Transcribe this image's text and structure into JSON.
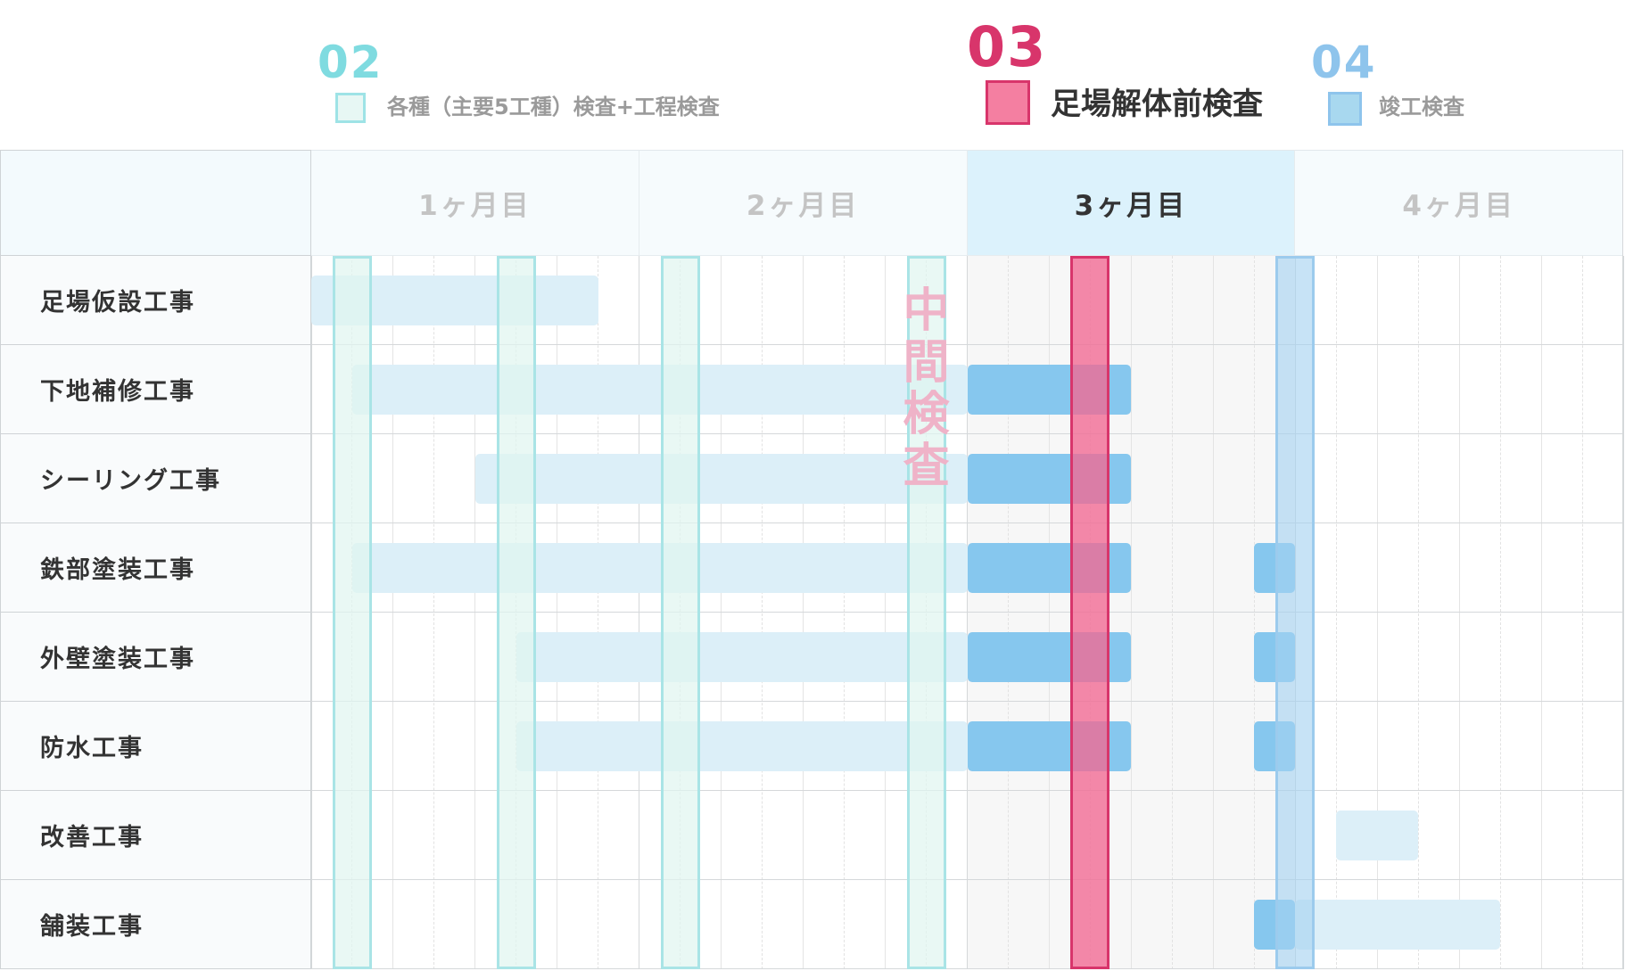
{
  "legend": [
    {
      "number": "02",
      "label": "各種（主要5工種）検査+工程検査",
      "number_color": "#7fdbe0",
      "swatch_fill": "#e7f7f4",
      "swatch_border": "#9ee3e6"
    },
    {
      "number": "03",
      "label": "足場解体前検査",
      "number_color": "#d8356b",
      "swatch_fill": "#f47fa1",
      "swatch_border": "#d8356b"
    },
    {
      "number": "04",
      "label": "竣工検査",
      "number_color": "#8ec4ec",
      "swatch_fill": "#a8d8ef",
      "swatch_border": "#8ec4ec"
    }
  ],
  "header": {
    "months": [
      "1ヶ月目",
      "2ヶ月目",
      "3ヶ月目",
      "4ヶ月目"
    ],
    "highlight_month_index": 2
  },
  "rows": [
    "足場仮設工事",
    "下地補修工事",
    "シーリング工事",
    "鉄部塗装工事",
    "外壁塗装工事",
    "防水工事",
    "改善工事",
    "舗装工事"
  ],
  "midterm_label": "中間検査",
  "colors": {
    "task_light": "#dceff8",
    "task_strong": "#86c7ee",
    "grid_line": "#e4e4e4",
    "row_line": "#d5d8da",
    "header_bg": "#f6fbfd",
    "header_highlight_bg": "#dcf2fc",
    "header_text": "#c4c4c4",
    "header_highlight_text": "#333333"
  },
  "chart_data": {
    "type": "gantt",
    "x_unit": "week",
    "x_range": [
      0,
      16
    ],
    "categories": [
      "足場仮設工事",
      "下地補修工事",
      "シーリング工事",
      "鉄部塗装工事",
      "外壁塗装工事",
      "防水工事",
      "改善工事",
      "舗装工事"
    ],
    "tasks": [
      {
        "row": 0,
        "start": 0.0,
        "end": 3.5,
        "style": "light"
      },
      {
        "row": 1,
        "start": 0.5,
        "end": 8.0,
        "style": "light"
      },
      {
        "row": 1,
        "start": 8.0,
        "end": 10.0,
        "style": "strong"
      },
      {
        "row": 2,
        "start": 2.0,
        "end": 8.0,
        "style": "light"
      },
      {
        "row": 2,
        "start": 8.0,
        "end": 10.0,
        "style": "strong"
      },
      {
        "row": 3,
        "start": 0.5,
        "end": 8.0,
        "style": "light"
      },
      {
        "row": 3,
        "start": 8.0,
        "end": 10.0,
        "style": "strong"
      },
      {
        "row": 3,
        "start": 11.5,
        "end": 12.0,
        "style": "strong"
      },
      {
        "row": 4,
        "start": 2.5,
        "end": 8.0,
        "style": "light"
      },
      {
        "row": 4,
        "start": 8.0,
        "end": 10.0,
        "style": "strong"
      },
      {
        "row": 4,
        "start": 11.5,
        "end": 12.0,
        "style": "strong"
      },
      {
        "row": 5,
        "start": 2.5,
        "end": 8.0,
        "style": "light"
      },
      {
        "row": 5,
        "start": 8.0,
        "end": 10.0,
        "style": "strong"
      },
      {
        "row": 5,
        "start": 11.5,
        "end": 12.0,
        "style": "strong"
      },
      {
        "row": 6,
        "start": 12.5,
        "end": 13.5,
        "style": "light"
      },
      {
        "row": 7,
        "start": 11.5,
        "end": 12.0,
        "style": "strong"
      },
      {
        "row": 7,
        "start": 12.0,
        "end": 14.5,
        "style": "light"
      }
    ],
    "inspections": [
      {
        "legend": "02",
        "at": [
          0.5,
          2.5,
          4.5,
          7.5
        ]
      },
      {
        "legend": "03",
        "at": [
          9.5
        ]
      },
      {
        "legend": "04",
        "at": [
          12.0
        ]
      }
    ],
    "midterm_label_at": 7.5
  }
}
